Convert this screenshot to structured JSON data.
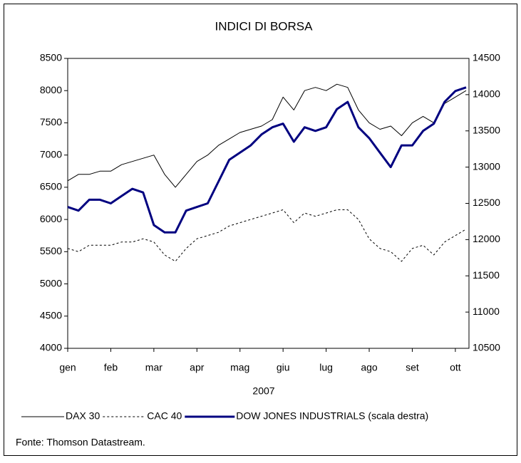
{
  "chart_data": {
    "type": "line",
    "title": "INDICI DI BORSA",
    "xlabel": "2007",
    "note": "Fonte: Thomson Datastream.",
    "categories": [
      "gen",
      null,
      null,
      null,
      "feb",
      null,
      null,
      null,
      "mar",
      null,
      null,
      null,
      "apr",
      null,
      null,
      null,
      "mag",
      null,
      null,
      null,
      "giu",
      null,
      null,
      null,
      "lug",
      null,
      null,
      null,
      "ago",
      null,
      null,
      null,
      "set",
      null,
      null,
      null,
      "ott",
      null
    ],
    "series": [
      {
        "name": "DAX 30",
        "color": "#000000",
        "width": 1,
        "dashed": false,
        "values": [
          6600,
          6700,
          6700,
          6750,
          6750,
          6850,
          6900,
          6950,
          7000,
          6700,
          6500,
          6700,
          6900,
          7000,
          7150,
          7250,
          7350,
          7400,
          7450,
          7550,
          7900,
          7700,
          8000,
          8050,
          8000,
          8100,
          8050,
          7700,
          7500,
          7400,
          7450,
          7300,
          7500,
          7600,
          7500,
          7800,
          7900,
          8000
        ]
      },
      {
        "name": "CAC 40",
        "color": "#000000",
        "width": 1,
        "dashed": true,
        "values": [
          5550,
          5500,
          5600,
          5600,
          5600,
          5650,
          5650,
          5700,
          5650,
          5450,
          5350,
          5550,
          5700,
          5750,
          5800,
          5900,
          5950,
          6000,
          6050,
          6100,
          6150,
          5950,
          6100,
          6050,
          6100,
          6150,
          6150,
          6000,
          5700,
          5550,
          5500,
          5350,
          5550,
          5600,
          5450,
          5650,
          5750,
          5850
        ]
      },
      {
        "name": "DOW JONES INDUSTRIALS (scala destra)",
        "color": "#000080",
        "width": 3,
        "dashed": false,
        "axis": "y2",
        "values": [
          12450,
          12400,
          12550,
          12550,
          12500,
          12600,
          12700,
          12650,
          12200,
          12100,
          12100,
          12400,
          12450,
          12500,
          12800,
          13100,
          13200,
          13300,
          13450,
          13550,
          13600,
          13350,
          13550,
          13500,
          13550,
          13800,
          13900,
          13550,
          13400,
          13200,
          13000,
          13300,
          13300,
          13500,
          13600,
          13900,
          14050,
          14100
        ]
      }
    ],
    "ylim": [
      4000,
      8500
    ],
    "yticks": [
      4000,
      4500,
      5000,
      5500,
      6000,
      6500,
      7000,
      7500,
      8000,
      8500
    ],
    "y2lim": [
      10500,
      14500
    ],
    "y2ticks": [
      10500,
      11000,
      11500,
      12000,
      12500,
      13000,
      13500,
      14000,
      14500
    ],
    "legend": "bottom"
  }
}
